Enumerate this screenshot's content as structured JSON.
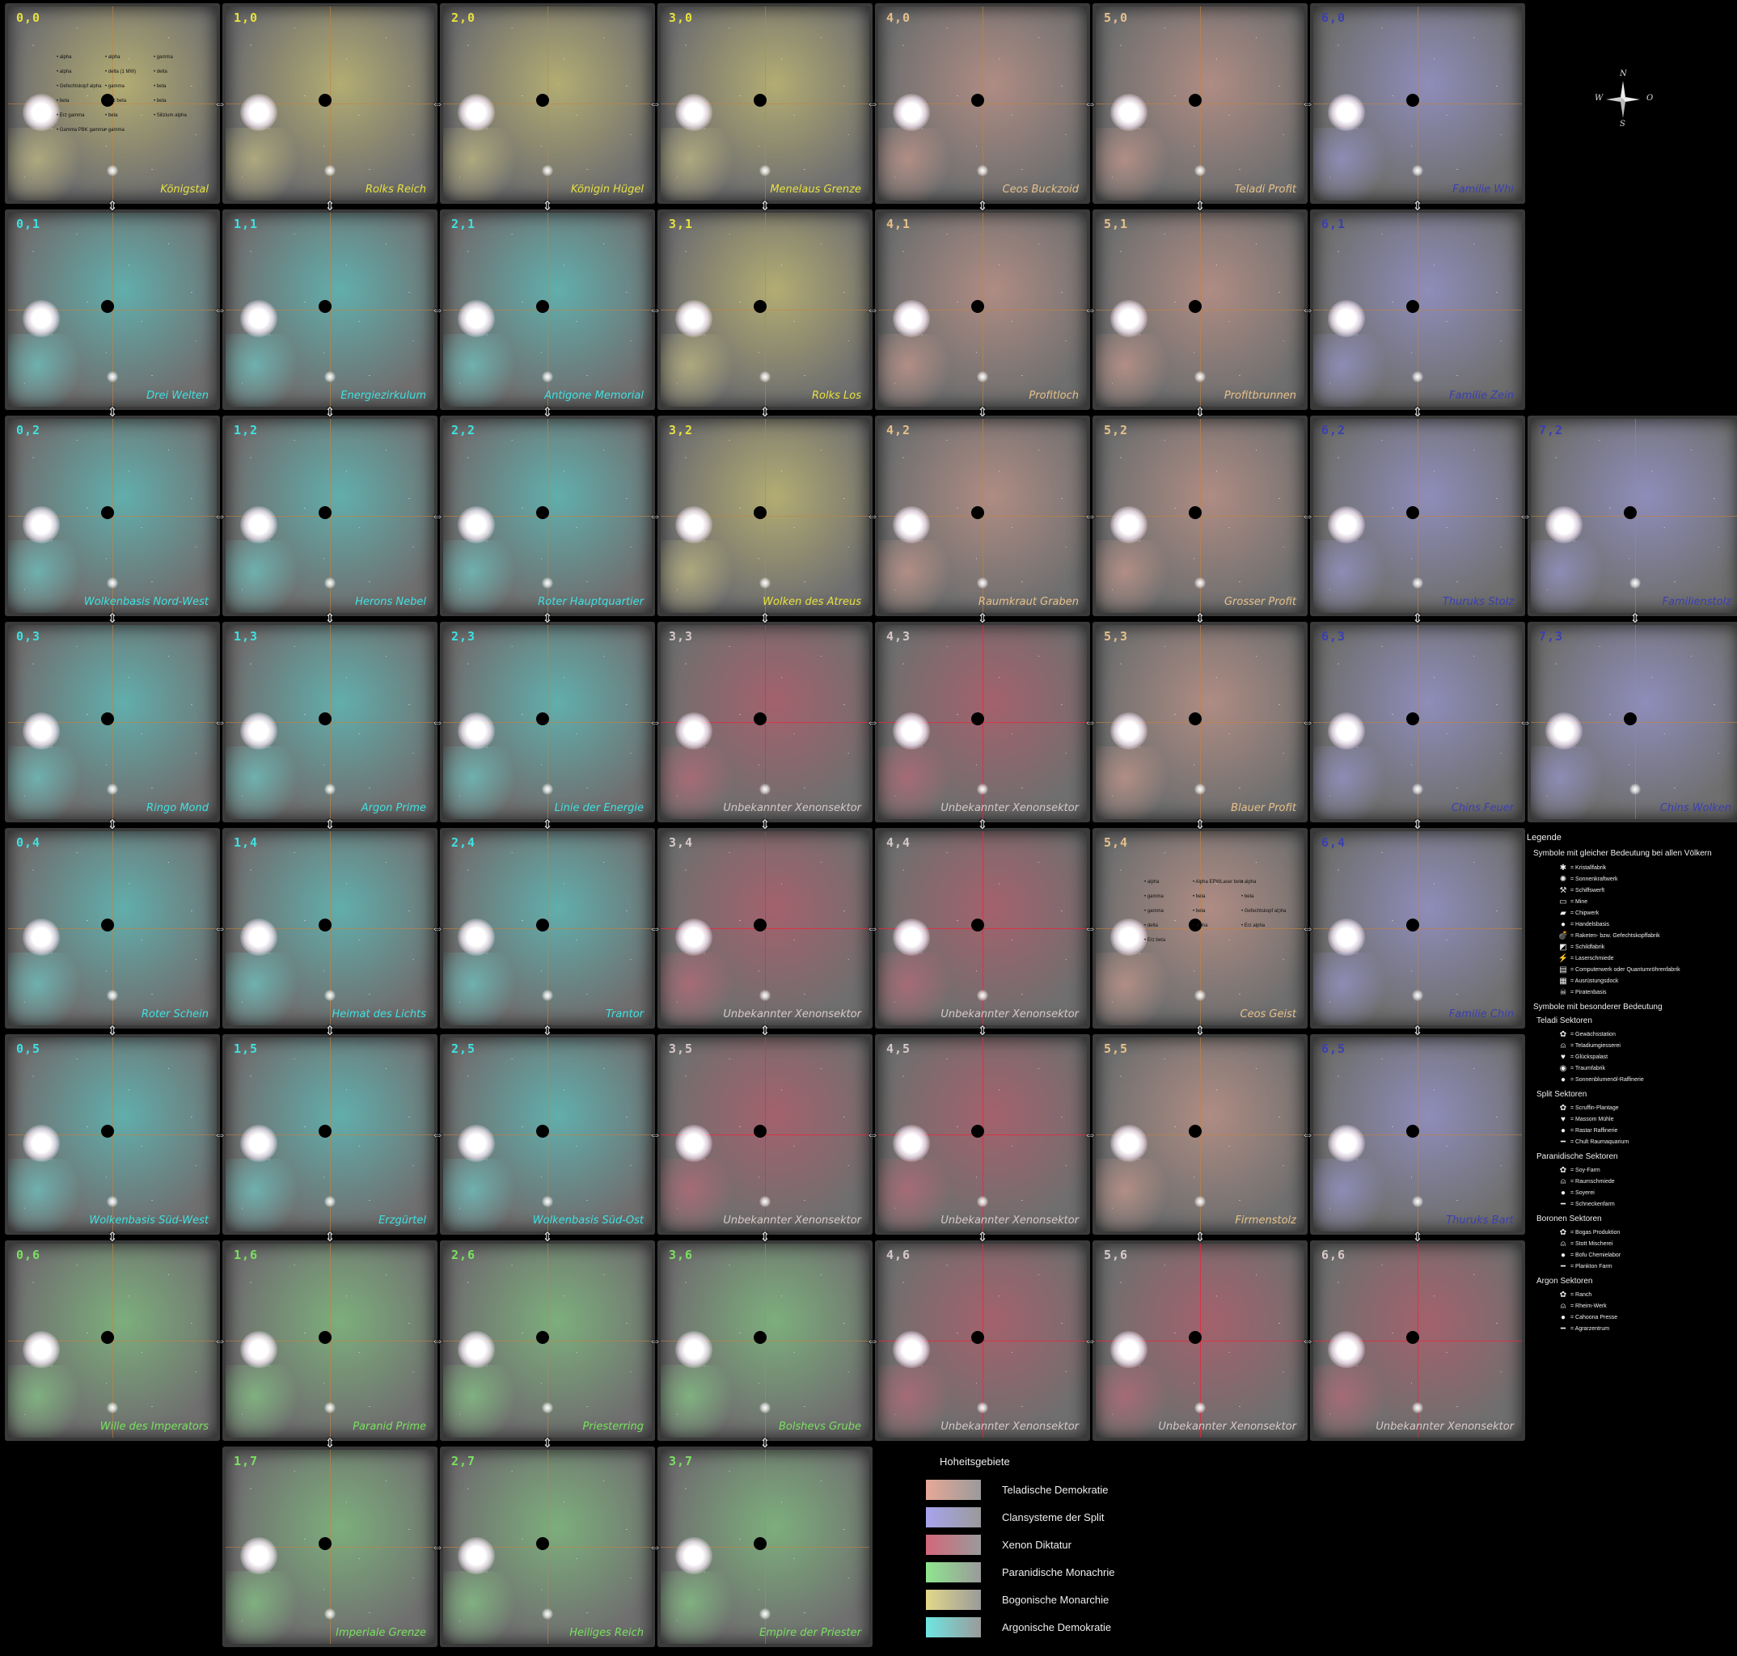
{
  "territories": {
    "title": "Hoheitsgebiete",
    "items": [
      {
        "id": "teladi",
        "label": "Teladische Demokratie",
        "color": "#e7a898"
      },
      {
        "id": "split",
        "label": "Clansysteme der Split",
        "color": "#a7a4ee"
      },
      {
        "id": "xenon",
        "label": "Xenon Diktatur",
        "color": "#d2687a"
      },
      {
        "id": "paranid",
        "label": "Paranidische Monachrie",
        "color": "#8fe68f"
      },
      {
        "id": "boron",
        "label": "Bogonische Monarchie",
        "color": "#e3d88a"
      },
      {
        "id": "argon",
        "label": "Argonische Demokratie",
        "color": "#6fe6e2"
      }
    ]
  },
  "compass": {
    "n": "N",
    "s": "S",
    "w": "W",
    "o": "O"
  },
  "legend": {
    "title": "Legende",
    "common_title": "Symbole mit gleicher Bedeutung bei allen Völkern",
    "common": [
      {
        "icon": "crystal-icon",
        "glyph": "✱",
        "label": "= Kristallfabrik"
      },
      {
        "icon": "solar-plant-icon",
        "glyph": "✺",
        "label": "= Sonnenkraftwerk"
      },
      {
        "icon": "shipyard-icon",
        "glyph": "⚒",
        "label": "= Schiffswerft"
      },
      {
        "icon": "mine-icon",
        "glyph": "▭",
        "label": "= Mine"
      },
      {
        "icon": "chip-plant-icon",
        "glyph": "▰",
        "label": "= Chipwerk"
      },
      {
        "icon": "trading-station-icon",
        "glyph": "●",
        "label": "= Handelsbasis"
      },
      {
        "icon": "missile-factory-icon",
        "glyph": "💣",
        "label": "= Raketen- bzw. Gefechtskopffabrik"
      },
      {
        "icon": "shield-factory-icon",
        "glyph": "◩",
        "label": "= Schildfabrik"
      },
      {
        "icon": "laser-forge-icon",
        "glyph": "⚡",
        "label": "= Laserschmiede"
      },
      {
        "icon": "computer-plant-icon",
        "glyph": "▤",
        "label": "= Computerwerk oder Quantumröhrenfabrik"
      },
      {
        "icon": "equipment-dock-icon",
        "glyph": "▦",
        "label": "= Ausrüstungsdock"
      },
      {
        "icon": "pirate-base-icon",
        "glyph": "☠",
        "label": "= Piratenbasis"
      }
    ],
    "special_title": "Symbole mit besonderer Bedeutung",
    "races": [
      {
        "title": "Teladi Sektoren",
        "items": [
          {
            "icon": "food-icon",
            "glyph": "✿",
            "label": "= Gewächsstation"
          },
          {
            "icon": "bell-icon",
            "glyph": "⍝",
            "label": "= Teladiumgiesserei"
          },
          {
            "icon": "heart-icon",
            "glyph": "♥",
            "label": "= Glückspalast"
          },
          {
            "icon": "eye-icon",
            "glyph": "◉",
            "label": "= Traumfabrik"
          },
          {
            "icon": "drop-icon",
            "glyph": "●",
            "label": "= Sonnenblumenöl-Raffinerie"
          }
        ]
      },
      {
        "title": "Split Sektoren",
        "items": [
          {
            "icon": "food-icon",
            "glyph": "✿",
            "label": "= Scruffin-Plantage"
          },
          {
            "icon": "heart-icon",
            "glyph": "♥",
            "label": "= Massom Mühle"
          },
          {
            "icon": "drop-icon",
            "glyph": "●",
            "label": "= Rastar Raffinerie"
          },
          {
            "icon": "dash-icon",
            "glyph": "━",
            "label": "= Chult Raumaquarium"
          }
        ]
      },
      {
        "title": "Paranidische Sektoren",
        "items": [
          {
            "icon": "food-icon",
            "glyph": "✿",
            "label": "= Soy-Farm"
          },
          {
            "icon": "bell-icon",
            "glyph": "⍝",
            "label": "= Raumschmiede"
          },
          {
            "icon": "drop-icon",
            "glyph": "●",
            "label": "= Soyerei"
          },
          {
            "icon": "dash-icon",
            "glyph": "━",
            "label": "= Schneckenfarm"
          }
        ]
      },
      {
        "title": "Boronen Sektoren",
        "items": [
          {
            "icon": "food-icon",
            "glyph": "✿",
            "label": "= Bogas Produktion"
          },
          {
            "icon": "bell-icon",
            "glyph": "⍝",
            "label": "= Stott Mischerei"
          },
          {
            "icon": "drop-icon",
            "glyph": "●",
            "label": "= Bofu Chemielabor"
          },
          {
            "icon": "dash-icon",
            "glyph": "━",
            "label": "= Plankton Farm"
          }
        ]
      },
      {
        "title": "Argon Sektoren",
        "items": [
          {
            "icon": "food-icon",
            "glyph": "✿",
            "label": "= Ranch"
          },
          {
            "icon": "bell-icon",
            "glyph": "⍝",
            "label": "= Rheim-Werk"
          },
          {
            "icon": "drop-icon",
            "glyph": "●",
            "label": "= Cahoona Presse"
          },
          {
            "icon": "dash-icon",
            "glyph": "━",
            "label": "= Agrarzentrum"
          }
        ]
      }
    ]
  },
  "sectors": [
    {
      "coord": "0,0",
      "name": "Königstal",
      "race": "boron"
    },
    {
      "coord": "1,0",
      "name": "Rolks Reich",
      "race": "boron"
    },
    {
      "coord": "2,0",
      "name": "Königin Hügel",
      "race": "boron"
    },
    {
      "coord": "3,0",
      "name": "Menelaus Grenze",
      "race": "boron"
    },
    {
      "coord": "4,0",
      "name": "Ceos Buckzoid",
      "race": "teladi"
    },
    {
      "coord": "5,0",
      "name": "Teladi Profit",
      "race": "teladi"
    },
    {
      "coord": "6,0",
      "name": "Familie Whi",
      "race": "split"
    },
    {
      "coord": "0,1",
      "name": "Drei Welten",
      "race": "argon"
    },
    {
      "coord": "1,1",
      "name": "Energiezirkulum",
      "race": "argon"
    },
    {
      "coord": "2,1",
      "name": "Antigone Memorial",
      "race": "argon"
    },
    {
      "coord": "3,1",
      "name": "Rolks Los",
      "race": "boron"
    },
    {
      "coord": "4,1",
      "name": "Profitloch",
      "race": "teladi"
    },
    {
      "coord": "5,1",
      "name": "Profitbrunnen",
      "race": "teladi"
    },
    {
      "coord": "6,1",
      "name": "Familie Zein",
      "race": "split"
    },
    {
      "coord": "0,2",
      "name": "Wolkenbasis Nord-West",
      "race": "argon"
    },
    {
      "coord": "1,2",
      "name": "Herons Nebel",
      "race": "argon"
    },
    {
      "coord": "2,2",
      "name": "Roter Hauptquartier",
      "race": "argon"
    },
    {
      "coord": "3,2",
      "name": "Wolken des Atreus",
      "race": "boron"
    },
    {
      "coord": "4,2",
      "name": "Raumkraut Graben",
      "race": "teladi"
    },
    {
      "coord": "5,2",
      "name": "Grosser Profit",
      "race": "teladi"
    },
    {
      "coord": "6,2",
      "name": "Thuruks Stolz",
      "race": "split"
    },
    {
      "coord": "7,2",
      "name": "Familienstolz",
      "race": "split"
    },
    {
      "coord": "0,3",
      "name": "Ringo Mond",
      "race": "argon"
    },
    {
      "coord": "1,3",
      "name": "Argon Prime",
      "race": "argon"
    },
    {
      "coord": "2,3",
      "name": "Linie der Energie",
      "race": "argon"
    },
    {
      "coord": "3,3",
      "name": "Unbekannter Xenonsektor",
      "race": "xenon"
    },
    {
      "coord": "4,3",
      "name": "Unbekannter Xenonsektor",
      "race": "xenon"
    },
    {
      "coord": "5,3",
      "name": "Blauer Profit",
      "race": "teladi"
    },
    {
      "coord": "6,3",
      "name": "Chins Feuer",
      "race": "split"
    },
    {
      "coord": "7,3",
      "name": "Chins Wolken",
      "race": "split"
    },
    {
      "coord": "0,4",
      "name": "Roter Schein",
      "race": "argon"
    },
    {
      "coord": "1,4",
      "name": "Heimat des Lichts",
      "race": "argon"
    },
    {
      "coord": "2,4",
      "name": "Trantor",
      "race": "argon"
    },
    {
      "coord": "3,4",
      "name": "Unbekannter Xenonsektor",
      "race": "xenon"
    },
    {
      "coord": "4,4",
      "name": "Unbekannter Xenonsektor",
      "race": "xenon"
    },
    {
      "coord": "5,4",
      "name": "Ceos Geist",
      "race": "teladi"
    },
    {
      "coord": "6,4",
      "name": "Familie Chin",
      "race": "split"
    },
    {
      "coord": "0,5",
      "name": "Wolkenbasis Süd-West",
      "race": "argon"
    },
    {
      "coord": "1,5",
      "name": "Erzgürtel",
      "race": "argon"
    },
    {
      "coord": "2,5",
      "name": "Wolkenbasis Süd-Ost",
      "race": "argon"
    },
    {
      "coord": "3,5",
      "name": "Unbekannter Xenonsektor",
      "race": "xenon"
    },
    {
      "coord": "4,5",
      "name": "Unbekannter Xenonsektor",
      "race": "xenon"
    },
    {
      "coord": "5,5",
      "name": "Firmenstolz",
      "race": "teladi"
    },
    {
      "coord": "6,5",
      "name": "Thuruks Bart",
      "race": "split"
    },
    {
      "coord": "0,6",
      "name": "Wille des Imperators",
      "race": "paranid"
    },
    {
      "coord": "1,6",
      "name": "Paranid Prime",
      "race": "paranid"
    },
    {
      "coord": "2,6",
      "name": "Priesterring",
      "race": "paranid"
    },
    {
      "coord": "3,6",
      "name": "Bolshevs Grube",
      "race": "paranid"
    },
    {
      "coord": "4,6",
      "name": "Unbekannter Xenonsektor",
      "race": "xenon"
    },
    {
      "coord": "5,6",
      "name": "Unbekannter Xenonsektor",
      "race": "xenon"
    },
    {
      "coord": "6,6",
      "name": "Unbekannter Xenonsektor",
      "race": "xenon"
    },
    {
      "coord": "1,7",
      "name": "Imperiale Grenze",
      "race": "paranid"
    },
    {
      "coord": "2,7",
      "name": "Heiliges Reich",
      "race": "paranid"
    },
    {
      "coord": "3,7",
      "name": "Empire der Priester",
      "race": "paranid"
    }
  ],
  "stations_sample": {
    "0,0": [
      "alpha",
      "alpha",
      "gamma",
      "alpha",
      "delta (1 MW)",
      "delta",
      "Gefechtskopf alpha",
      "gamma",
      "beta",
      "beta",
      "Erz beta",
      "beta",
      "Erz gamma",
      "beta",
      "Silizium alpha",
      "Gamma PBK gamma",
      "gamma"
    ],
    "5,4": [
      "alpha",
      "Alpha EPWLaser beta",
      "alpha",
      "gamma",
      "beta",
      "beta",
      "gamma",
      "beta",
      "Gefechtskopf alpha",
      "delta",
      "alpha",
      "Erz alpha",
      "Erz beta"
    ]
  }
}
